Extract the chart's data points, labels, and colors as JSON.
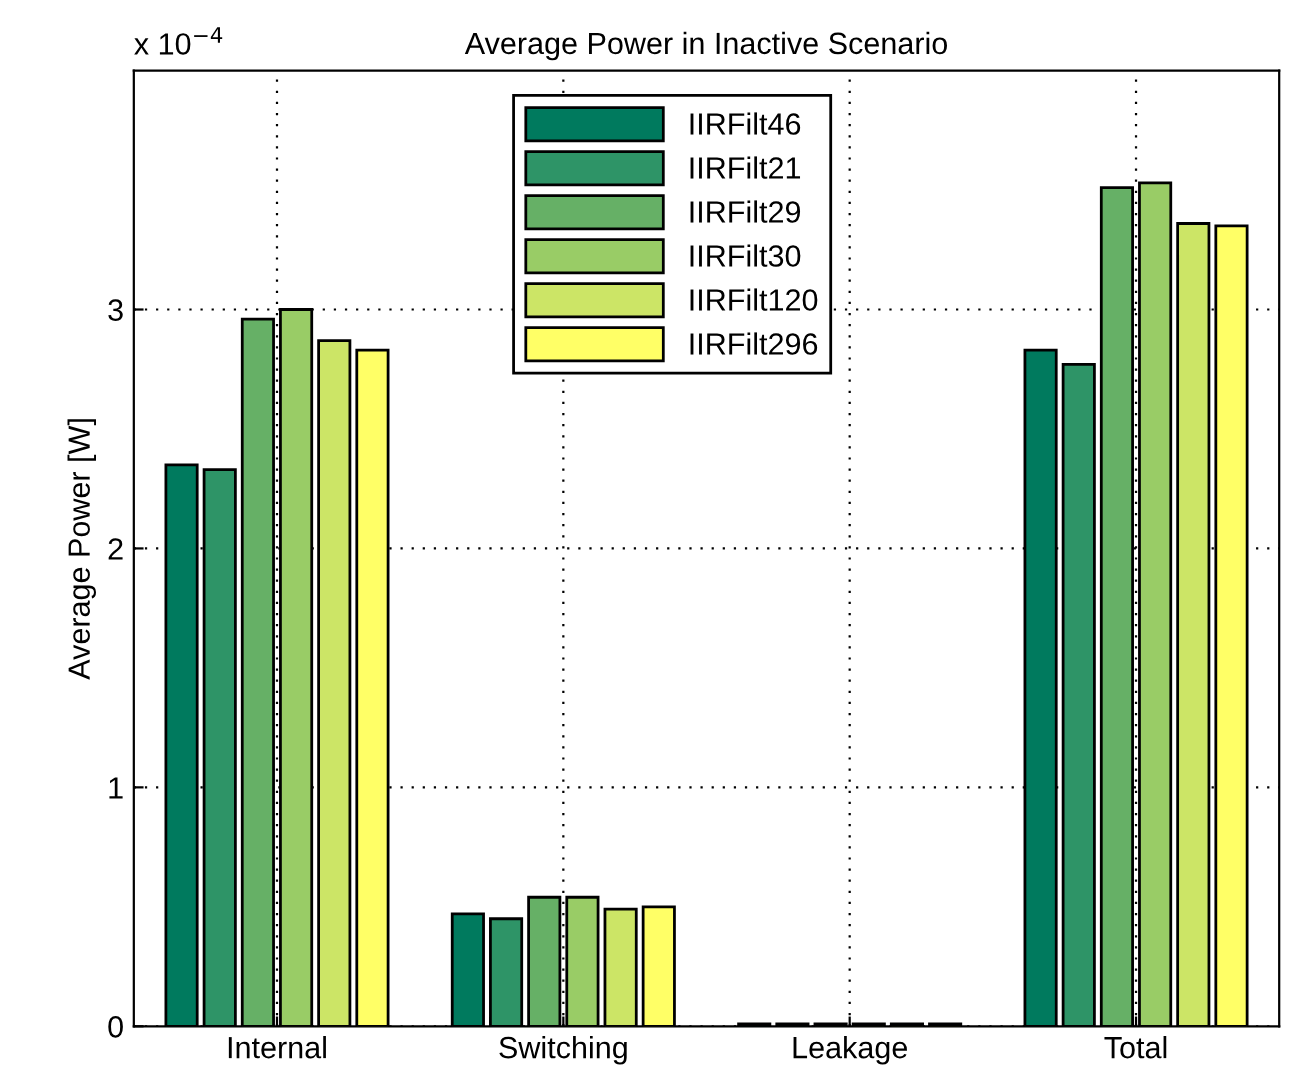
{
  "chart_data": {
    "type": "bar",
    "title": "Average Power in Inactive Scenario",
    "ylabel": "Average Power [W]",
    "annotations": [
      "x 10$^{−4}$"
    ],
    "categories": [
      "Internal",
      "Switching",
      "Leakage",
      "Total"
    ],
    "series": [
      {
        "name": "IIRFilt46",
        "color": "#007a5e",
        "values": [
          2.35,
          0.47,
          0.01,
          2.83
        ]
      },
      {
        "name": "IIRFilt21",
        "color": "#2e9467",
        "values": [
          2.33,
          0.45,
          0.01,
          2.77
        ]
      },
      {
        "name": "IIRFilt29",
        "color": "#66b066",
        "values": [
          2.96,
          0.54,
          0.01,
          3.51
        ]
      },
      {
        "name": "IIRFilt30",
        "color": "#99cc66",
        "values": [
          3.0,
          0.54,
          0.01,
          3.53
        ]
      },
      {
        "name": "IIRFilt120",
        "color": "#cce566",
        "values": [
          2.87,
          0.49,
          0.01,
          3.36
        ]
      },
      {
        "name": "IIRFilt296",
        "color": "#ffff66",
        "values": [
          2.83,
          0.5,
          0.01,
          3.35
        ]
      }
    ],
    "ylim": [
      0,
      4
    ],
    "yticks": [
      0,
      1,
      2,
      3
    ],
    "grid": true,
    "legend": "top"
  }
}
